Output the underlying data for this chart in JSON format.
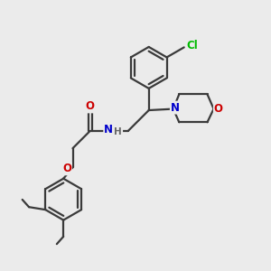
{
  "background_color": "#EBEBEB",
  "bond_color": "#3a3a3a",
  "atom_colors": {
    "N": "#0000CC",
    "O": "#CC0000",
    "Cl": "#00BB00",
    "C": "#3a3a3a",
    "H": "#666666"
  },
  "figsize": [
    3.0,
    3.0
  ],
  "dpi": 100,
  "lw": 1.6,
  "fs": 8.5
}
